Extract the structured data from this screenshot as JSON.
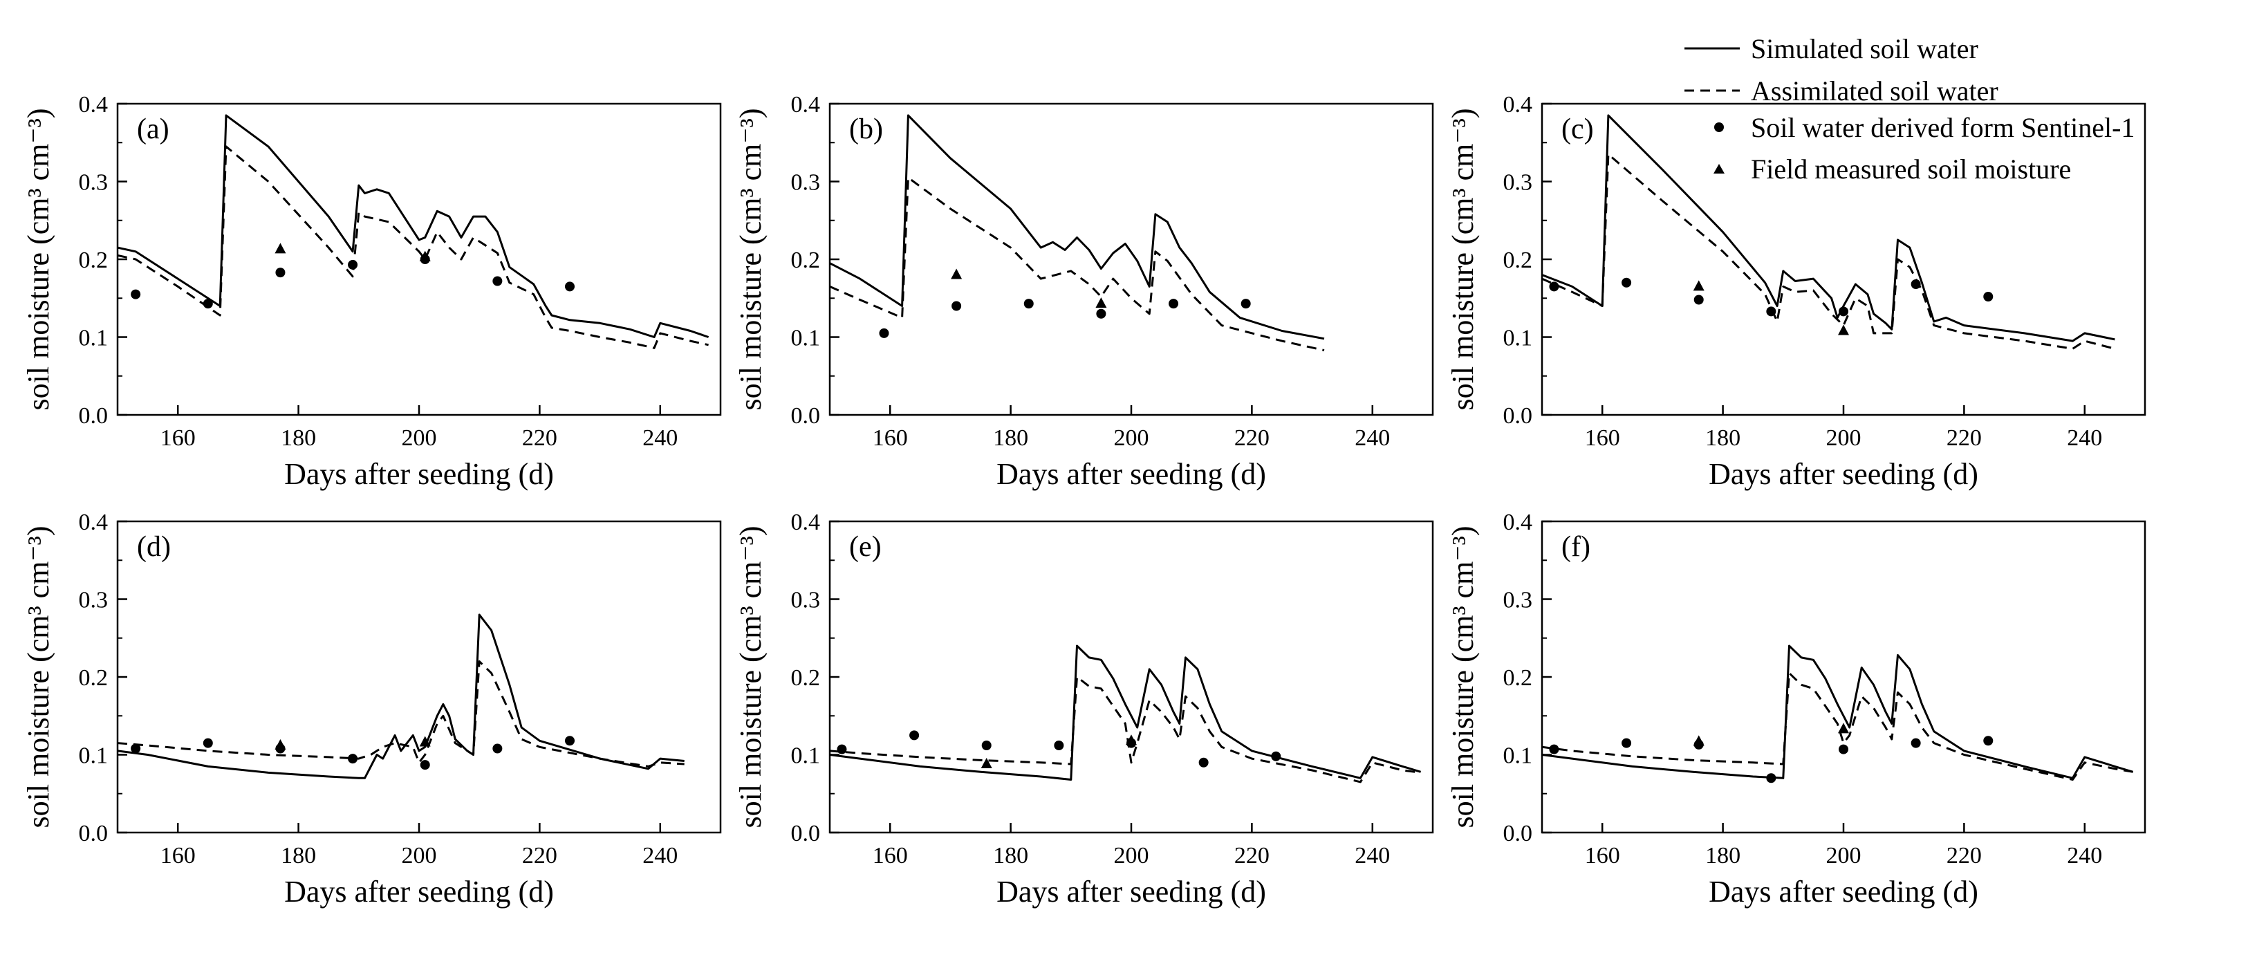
{
  "chart_data": [
    {
      "type": "line",
      "panel_label": "(a)",
      "xlabel": "Days after seeding (d)",
      "ylabel": "soil moisture (cm³ cm⁻³)",
      "xlim": [
        150,
        250
      ],
      "ylim": [
        0.0,
        0.4
      ],
      "xticks": [
        "160",
        "180",
        "200",
        "220",
        "240"
      ],
      "yticks": [
        "0.0",
        "0.1",
        "0.2",
        "0.3",
        "0.4"
      ],
      "series": [
        {
          "name": "Simulated soil water",
          "style": "solid",
          "x": [
            150,
            153,
            160,
            167,
            168,
            175,
            185,
            189,
            190,
            191,
            193,
            195,
            200,
            201,
            203,
            205,
            207,
            209,
            211,
            213,
            215,
            219,
            221,
            222,
            225,
            230,
            235,
            239,
            240,
            245,
            248
          ],
          "y": [
            0.215,
            0.21,
            0.175,
            0.14,
            0.385,
            0.345,
            0.255,
            0.21,
            0.295,
            0.285,
            0.29,
            0.285,
            0.225,
            0.228,
            0.262,
            0.255,
            0.228,
            0.255,
            0.255,
            0.235,
            0.19,
            0.168,
            0.14,
            0.128,
            0.122,
            0.118,
            0.11,
            0.1,
            0.118,
            0.108,
            0.1
          ]
        },
        {
          "name": "Assimilated soil water",
          "style": "dashed",
          "x": [
            150,
            153,
            160,
            167,
            168,
            175,
            185,
            189,
            190,
            191,
            195,
            200,
            201,
            203,
            205,
            207,
            209,
            213,
            215,
            219,
            221,
            222,
            225,
            230,
            235,
            239,
            240,
            245,
            248
          ],
          "y": [
            0.205,
            0.2,
            0.165,
            0.128,
            0.345,
            0.3,
            0.215,
            0.178,
            0.26,
            0.255,
            0.248,
            0.21,
            0.2,
            0.235,
            0.215,
            0.2,
            0.228,
            0.208,
            0.17,
            0.155,
            0.125,
            0.112,
            0.108,
            0.1,
            0.093,
            0.086,
            0.105,
            0.095,
            0.09
          ]
        }
      ],
      "sentinel_points": {
        "name": "Soil water derived form Sentinel-1",
        "x": [
          153,
          165,
          177,
          189,
          201,
          213,
          225
        ],
        "y": [
          0.155,
          0.143,
          0.183,
          0.193,
          0.2,
          0.172,
          0.165
        ]
      },
      "field_points": {
        "name": "Field measured soil moisture",
        "x": [
          177,
          201
        ],
        "y": [
          0.213,
          0.203
        ]
      }
    },
    {
      "type": "line",
      "panel_label": "(b)",
      "xlabel": "Days after seeding (d)",
      "ylabel": "soil moisture (cm³ cm⁻³)",
      "xlim": [
        150,
        250
      ],
      "ylim": [
        0.0,
        0.4
      ],
      "xticks": [
        "160",
        "180",
        "200",
        "220",
        "240"
      ],
      "yticks": [
        "0.0",
        "0.1",
        "0.2",
        "0.3",
        "0.4"
      ],
      "series": [
        {
          "name": "Simulated soil water",
          "style": "solid",
          "x": [
            150,
            155,
            162,
            163,
            170,
            180,
            185,
            187,
            189,
            191,
            193,
            195,
            197,
            199,
            201,
            203,
            204,
            206,
            208,
            210,
            213,
            218,
            225,
            232
          ],
          "y": [
            0.195,
            0.175,
            0.14,
            0.385,
            0.33,
            0.265,
            0.215,
            0.222,
            0.212,
            0.228,
            0.212,
            0.188,
            0.208,
            0.22,
            0.198,
            0.165,
            0.258,
            0.248,
            0.215,
            0.195,
            0.158,
            0.125,
            0.108,
            0.098
          ]
        },
        {
          "name": "Assimilated soil water",
          "style": "dashed",
          "x": [
            150,
            155,
            162,
            163,
            170,
            180,
            185,
            190,
            193,
            195,
            197,
            200,
            203,
            204,
            206,
            210,
            215,
            225,
            232
          ],
          "y": [
            0.165,
            0.148,
            0.125,
            0.305,
            0.265,
            0.215,
            0.175,
            0.185,
            0.168,
            0.152,
            0.175,
            0.15,
            0.13,
            0.21,
            0.198,
            0.155,
            0.115,
            0.095,
            0.083
          ]
        }
      ],
      "sentinel_points": {
        "name": "Soil water derived form Sentinel-1",
        "x": [
          159,
          171,
          183,
          195,
          207,
          219
        ],
        "y": [
          0.105,
          0.14,
          0.143,
          0.13,
          0.143,
          0.143
        ]
      },
      "field_points": {
        "name": "Field measured soil moisture",
        "x": [
          171,
          195
        ],
        "y": [
          0.18,
          0.143
        ]
      }
    },
    {
      "type": "line",
      "panel_label": "(c)",
      "xlabel": "Days after seeding (d)",
      "ylabel": "soil moisture (cm³ cm⁻³)",
      "xlim": [
        150,
        250
      ],
      "ylim": [
        0.0,
        0.4
      ],
      "xticks": [
        "160",
        "180",
        "200",
        "220",
        "240"
      ],
      "yticks": [
        "0.0",
        "0.1",
        "0.2",
        "0.3",
        "0.4"
      ],
      "series": [
        {
          "name": "Simulated soil water",
          "style": "solid",
          "x": [
            150,
            155,
            160,
            161,
            170,
            180,
            187,
            189,
            190,
            192,
            195,
            198,
            199,
            200,
            202,
            204,
            205,
            207,
            208,
            209,
            211,
            213,
            215,
            217,
            220,
            230,
            238,
            240,
            245
          ],
          "y": [
            0.18,
            0.165,
            0.14,
            0.385,
            0.315,
            0.235,
            0.17,
            0.14,
            0.185,
            0.172,
            0.175,
            0.15,
            0.125,
            0.14,
            0.168,
            0.155,
            0.13,
            0.118,
            0.11,
            0.225,
            0.215,
            0.17,
            0.12,
            0.125,
            0.115,
            0.105,
            0.095,
            0.105,
            0.097
          ]
        },
        {
          "name": "Assimilated soil water",
          "style": "dashed",
          "x": [
            150,
            155,
            160,
            161,
            170,
            180,
            187,
            189,
            190,
            192,
            195,
            198,
            200,
            202,
            204,
            205,
            207,
            208,
            209,
            211,
            213,
            215,
            220,
            230,
            238,
            240,
            245
          ],
          "y": [
            0.175,
            0.158,
            0.14,
            0.335,
            0.275,
            0.21,
            0.155,
            0.12,
            0.165,
            0.158,
            0.16,
            0.13,
            0.115,
            0.15,
            0.14,
            0.105,
            0.105,
            0.105,
            0.2,
            0.19,
            0.16,
            0.115,
            0.105,
            0.095,
            0.085,
            0.095,
            0.085
          ]
        }
      ],
      "sentinel_points": {
        "name": "Soil water derived form Sentinel-1",
        "x": [
          152,
          164,
          176,
          188,
          200,
          212,
          224
        ],
        "y": [
          0.165,
          0.17,
          0.148,
          0.133,
          0.133,
          0.168,
          0.152
        ]
      },
      "field_points": {
        "name": "Field measured soil moisture",
        "x": [
          176,
          200
        ],
        "y": [
          0.165,
          0.108
        ]
      }
    },
    {
      "type": "line",
      "panel_label": "(d)",
      "xlabel": "Days after seeding (d)",
      "ylabel": "soil moisture (cm³ cm⁻³)",
      "xlim": [
        150,
        250
      ],
      "ylim": [
        0.0,
        0.4
      ],
      "xticks": [
        "160",
        "180",
        "200",
        "220",
        "240"
      ],
      "yticks": [
        "0.0",
        "0.1",
        "0.2",
        "0.3",
        "0.4"
      ],
      "series": [
        {
          "name": "Simulated soil water",
          "style": "solid",
          "x": [
            150,
            155,
            165,
            175,
            185,
            190,
            191,
            193,
            194,
            196,
            197,
            199,
            200,
            201,
            203,
            204,
            205,
            206,
            208,
            209,
            210,
            212,
            215,
            217,
            220,
            230,
            238,
            240,
            244
          ],
          "y": [
            0.105,
            0.1,
            0.085,
            0.077,
            0.072,
            0.07,
            0.07,
            0.1,
            0.095,
            0.125,
            0.105,
            0.125,
            0.105,
            0.11,
            0.15,
            0.165,
            0.15,
            0.12,
            0.105,
            0.1,
            0.28,
            0.26,
            0.19,
            0.135,
            0.118,
            0.095,
            0.082,
            0.095,
            0.092
          ]
        },
        {
          "name": "Assimilated soil water",
          "style": "dashed",
          "x": [
            150,
            155,
            165,
            175,
            185,
            190,
            192,
            194,
            196,
            199,
            200,
            201,
            203,
            204,
            206,
            208,
            209,
            210,
            212,
            215,
            217,
            220,
            230,
            238,
            240,
            244
          ],
          "y": [
            0.115,
            0.112,
            0.105,
            0.1,
            0.097,
            0.095,
            0.1,
            0.11,
            0.115,
            0.11,
            0.09,
            0.1,
            0.14,
            0.15,
            0.115,
            0.105,
            0.1,
            0.22,
            0.205,
            0.155,
            0.12,
            0.11,
            0.095,
            0.085,
            0.09,
            0.088
          ]
        }
      ],
      "sentinel_points": {
        "name": "Soil water derived form Sentinel-1",
        "x": [
          153,
          165,
          177,
          189,
          201,
          213,
          225
        ],
        "y": [
          0.108,
          0.115,
          0.108,
          0.095,
          0.087,
          0.108,
          0.118
        ]
      },
      "field_points": {
        "name": "Field measured soil moisture",
        "x": [
          177,
          201
        ],
        "y": [
          0.112,
          0.116
        ]
      }
    },
    {
      "type": "line",
      "panel_label": "(e)",
      "xlabel": "Days after seeding (d)",
      "ylabel": "soil moisture (cm³ cm⁻³)",
      "xlim": [
        150,
        250
      ],
      "ylim": [
        0.0,
        0.4
      ],
      "xticks": [
        "160",
        "180",
        "200",
        "220",
        "240"
      ],
      "yticks": [
        "0.0",
        "0.1",
        "0.2",
        "0.3",
        "0.4"
      ],
      "series": [
        {
          "name": "Simulated soil water",
          "style": "solid",
          "x": [
            150,
            155,
            165,
            175,
            185,
            190,
            191,
            193,
            195,
            197,
            199,
            201,
            203,
            205,
            207,
            208,
            209,
            211,
            213,
            215,
            220,
            230,
            238,
            240,
            245,
            248
          ],
          "y": [
            0.1,
            0.095,
            0.085,
            0.078,
            0.072,
            0.068,
            0.24,
            0.225,
            0.222,
            0.198,
            0.165,
            0.135,
            0.21,
            0.19,
            0.155,
            0.14,
            0.225,
            0.21,
            0.165,
            0.13,
            0.105,
            0.085,
            0.07,
            0.097,
            0.085,
            0.078
          ]
        },
        {
          "name": "Assimilated soil water",
          "style": "dashed",
          "x": [
            150,
            155,
            165,
            175,
            185,
            190,
            191,
            193,
            195,
            199,
            200,
            201,
            203,
            205,
            207,
            208,
            209,
            211,
            213,
            215,
            220,
            230,
            238,
            240,
            245,
            248
          ],
          "y": [
            0.105,
            0.102,
            0.097,
            0.093,
            0.09,
            0.088,
            0.2,
            0.188,
            0.185,
            0.14,
            0.09,
            0.115,
            0.17,
            0.155,
            0.135,
            0.12,
            0.175,
            0.16,
            0.13,
            0.11,
            0.095,
            0.08,
            0.065,
            0.09,
            0.08,
            0.077
          ]
        }
      ],
      "sentinel_points": {
        "name": "Soil water derived form Sentinel-1",
        "x": [
          152,
          164,
          176,
          188,
          200,
          212,
          224
        ],
        "y": [
          0.107,
          0.125,
          0.112,
          0.112,
          0.115,
          0.09,
          0.098
        ]
      },
      "field_points": {
        "name": "Field measured soil moisture",
        "x": [
          176,
          200
        ],
        "y": [
          0.088,
          0.118
        ]
      }
    },
    {
      "type": "line",
      "panel_label": "(f)",
      "xlabel": "Days after seeding (d)",
      "ylabel": "soil moisture (cm³ cm⁻³)",
      "xlim": [
        150,
        250
      ],
      "ylim": [
        0.0,
        0.4
      ],
      "xticks": [
        "160",
        "180",
        "200",
        "220",
        "240"
      ],
      "yticks": [
        "0.0",
        "0.1",
        "0.2",
        "0.3",
        "0.4"
      ],
      "series": [
        {
          "name": "Simulated soil water",
          "style": "solid",
          "x": [
            150,
            155,
            165,
            175,
            185,
            190,
            191,
            193,
            195,
            197,
            199,
            201,
            203,
            205,
            207,
            208,
            209,
            211,
            213,
            215,
            220,
            230,
            238,
            240,
            245,
            248
          ],
          "y": [
            0.1,
            0.095,
            0.085,
            0.078,
            0.072,
            0.07,
            0.24,
            0.225,
            0.222,
            0.198,
            0.165,
            0.135,
            0.212,
            0.19,
            0.155,
            0.14,
            0.228,
            0.21,
            0.165,
            0.13,
            0.105,
            0.085,
            0.07,
            0.097,
            0.085,
            0.078
          ]
        },
        {
          "name": "Assimilated soil water",
          "style": "dashed",
          "x": [
            150,
            155,
            165,
            175,
            185,
            190,
            191,
            193,
            195,
            199,
            200,
            201,
            203,
            205,
            207,
            208,
            209,
            211,
            213,
            215,
            220,
            230,
            238,
            240,
            245,
            248
          ],
          "y": [
            0.11,
            0.105,
            0.098,
            0.093,
            0.09,
            0.088,
            0.205,
            0.19,
            0.185,
            0.14,
            0.115,
            0.125,
            0.175,
            0.16,
            0.135,
            0.12,
            0.18,
            0.165,
            0.135,
            0.115,
            0.1,
            0.082,
            0.068,
            0.09,
            0.082,
            0.078
          ]
        }
      ],
      "sentinel_points": {
        "name": "Soil water derived form Sentinel-1",
        "x": [
          152,
          164,
          176,
          188,
          200,
          212,
          224
        ],
        "y": [
          0.107,
          0.115,
          0.113,
          0.07,
          0.107,
          0.115,
          0.118
        ]
      },
      "field_points": {
        "name": "Field measured soil moisture",
        "x": [
          176,
          200
        ],
        "y": [
          0.117,
          0.133
        ]
      }
    }
  ],
  "legend": {
    "placement": "top-right",
    "entries": [
      {
        "label": "Simulated soil water",
        "marker": "solid-line"
      },
      {
        "label": "Assimilated soil water",
        "marker": "dashed-line"
      },
      {
        "label": "Soil water derived form Sentinel-1",
        "marker": "circle"
      },
      {
        "label": "Field measured soil moisture",
        "marker": "triangle"
      }
    ]
  }
}
